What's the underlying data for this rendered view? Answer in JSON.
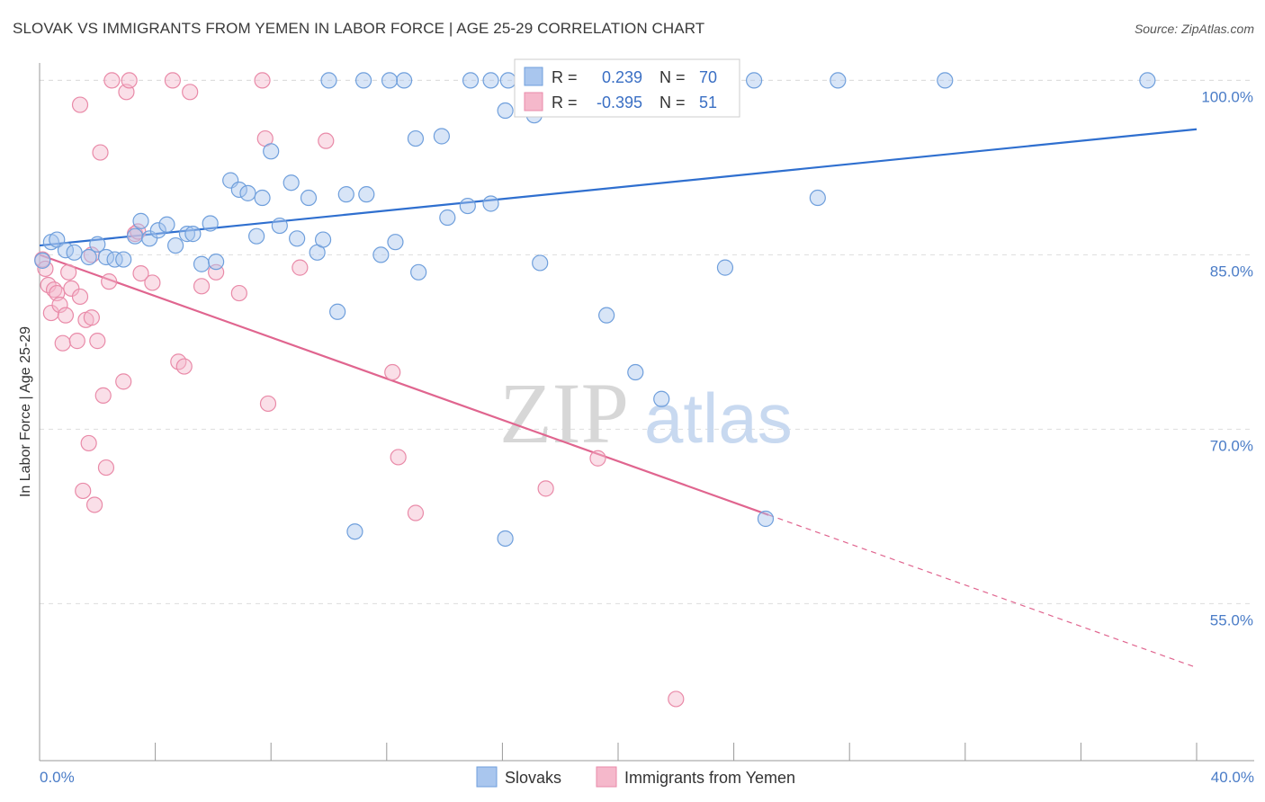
{
  "title": "SLOVAK VS IMMIGRANTS FROM YEMEN IN LABOR FORCE | AGE 25-29 CORRELATION CHART",
  "source": "Source: ZipAtlas.com",
  "watermark": {
    "zip": "ZIP",
    "atlas": "atlas"
  },
  "colors": {
    "slovak_fill": "#a9c6ee",
    "slovak_stroke": "#6f9fdc",
    "slovak_line": "#2f6fcf",
    "yemen_fill": "#f5b8cb",
    "yemen_stroke": "#e98aa8",
    "yemen_line": "#e0658f",
    "tick_text": "#4a7cc7"
  },
  "legend_box": {
    "r_label": "R =",
    "n_label": "N =",
    "rows": [
      {
        "r": "0.239",
        "n": "70"
      },
      {
        "r": "-0.395",
        "n": "51"
      }
    ]
  },
  "chart_data": {
    "type": "scatter",
    "xlabel": "",
    "ylabel": "In Labor Force | Age 25-29",
    "xlim": [
      0,
      40
    ],
    "ylim": [
      41.5,
      101.5
    ],
    "x_tick_labels": [
      "0.0%",
      "40.0%"
    ],
    "y_ticks": [
      100,
      85,
      70,
      55
    ],
    "y_tick_labels": [
      "100.0%",
      "85.0%",
      "70.0%",
      "55.0%"
    ],
    "grid": true,
    "legend_position": "bottom",
    "series": [
      {
        "name": "Slovaks",
        "trend": {
          "x0": 0,
          "y0": 85.8,
          "x1": 40,
          "y1": 95.8,
          "solid_until": 40
        },
        "points": [
          [
            0.1,
            84.5
          ],
          [
            0.4,
            86.1
          ],
          [
            0.6,
            86.3
          ],
          [
            0.9,
            85.4
          ],
          [
            1.2,
            85.2
          ],
          [
            1.7,
            84.8
          ],
          [
            2.0,
            85.9
          ],
          [
            2.3,
            84.8
          ],
          [
            2.6,
            84.6
          ],
          [
            2.9,
            84.6
          ],
          [
            3.3,
            86.6
          ],
          [
            3.5,
            87.9
          ],
          [
            3.8,
            86.4
          ],
          [
            4.1,
            87.1
          ],
          [
            4.4,
            87.6
          ],
          [
            4.7,
            85.8
          ],
          [
            5.1,
            86.8
          ],
          [
            5.3,
            86.8
          ],
          [
            5.6,
            84.2
          ],
          [
            5.9,
            87.7
          ],
          [
            6.1,
            84.4
          ],
          [
            6.6,
            91.4
          ],
          [
            6.9,
            90.6
          ],
          [
            7.2,
            90.3
          ],
          [
            7.5,
            86.6
          ],
          [
            7.7,
            89.9
          ],
          [
            8.0,
            93.9
          ],
          [
            8.3,
            87.5
          ],
          [
            8.7,
            91.2
          ],
          [
            8.9,
            86.4
          ],
          [
            9.3,
            89.9
          ],
          [
            9.6,
            85.2
          ],
          [
            9.8,
            86.3
          ],
          [
            10.3,
            80.1
          ],
          [
            10.6,
            90.2
          ],
          [
            10.9,
            61.2
          ],
          [
            11.3,
            90.2
          ],
          [
            11.8,
            85.0
          ],
          [
            12.3,
            86.1
          ],
          [
            12.6,
            100.0
          ],
          [
            13.0,
            95.0
          ],
          [
            13.1,
            83.5
          ],
          [
            13.9,
            95.2
          ],
          [
            14.1,
            88.2
          ],
          [
            14.8,
            89.2
          ],
          [
            15.6,
            100.0
          ],
          [
            15.6,
            89.4
          ],
          [
            16.1,
            97.4
          ],
          [
            16.1,
            60.6
          ],
          [
            16.8,
            99.8
          ],
          [
            17.1,
            97.0
          ],
          [
            17.3,
            84.3
          ],
          [
            19.6,
            79.8
          ],
          [
            20.6,
            74.9
          ],
          [
            21.3,
            100.0
          ],
          [
            21.5,
            72.6
          ],
          [
            23.1,
            100.0
          ],
          [
            23.7,
            83.9
          ],
          [
            24.7,
            100.0
          ],
          [
            26.9,
            89.9
          ],
          [
            27.6,
            100.0
          ],
          [
            31.3,
            100.0
          ],
          [
            38.3,
            100.0
          ],
          [
            25.1,
            62.3
          ],
          [
            10.0,
            100.0
          ],
          [
            11.2,
            100.0
          ],
          [
            12.1,
            100.0
          ],
          [
            14.9,
            100.0
          ],
          [
            16.2,
            100.0
          ],
          [
            17.8,
            100.0
          ]
        ]
      },
      {
        "name": "Immigrants from Yemen",
        "trend": {
          "x0": 0,
          "y0": 85.0,
          "x1": 40,
          "y1": 49.5,
          "solid_until": 25.2
        },
        "points": [
          [
            0.1,
            84.6
          ],
          [
            0.2,
            83.8
          ],
          [
            0.3,
            82.4
          ],
          [
            0.4,
            80.0
          ],
          [
            0.5,
            82.0
          ],
          [
            0.6,
            81.7
          ],
          [
            0.7,
            80.7
          ],
          [
            0.8,
            77.4
          ],
          [
            0.9,
            79.8
          ],
          [
            1.0,
            83.5
          ],
          [
            1.1,
            82.1
          ],
          [
            1.3,
            77.6
          ],
          [
            1.4,
            81.4
          ],
          [
            1.4,
            97.9
          ],
          [
            1.5,
            64.7
          ],
          [
            1.6,
            79.4
          ],
          [
            1.7,
            68.8
          ],
          [
            1.8,
            79.6
          ],
          [
            1.9,
            63.5
          ],
          [
            2.0,
            77.6
          ],
          [
            2.1,
            93.8
          ],
          [
            2.2,
            72.9
          ],
          [
            2.3,
            66.7
          ],
          [
            2.4,
            82.7
          ],
          [
            2.5,
            100.0
          ],
          [
            2.9,
            74.1
          ],
          [
            3.0,
            99.0
          ],
          [
            3.1,
            100.0
          ],
          [
            3.3,
            86.8
          ],
          [
            3.4,
            87.0
          ],
          [
            3.5,
            83.4
          ],
          [
            3.9,
            82.6
          ],
          [
            4.6,
            100.0
          ],
          [
            4.8,
            75.8
          ],
          [
            5.0,
            75.4
          ],
          [
            5.2,
            99.0
          ],
          [
            5.6,
            82.3
          ],
          [
            6.1,
            83.5
          ],
          [
            6.9,
            81.7
          ],
          [
            7.7,
            100.0
          ],
          [
            7.8,
            95.0
          ],
          [
            7.9,
            72.2
          ],
          [
            9.0,
            83.9
          ],
          [
            9.9,
            94.8
          ],
          [
            12.2,
            74.9
          ],
          [
            12.4,
            67.6
          ],
          [
            13.0,
            62.8
          ],
          [
            17.5,
            64.9
          ],
          [
            19.3,
            67.5
          ],
          [
            22.0,
            46.8
          ],
          [
            1.8,
            85.0
          ]
        ]
      }
    ]
  }
}
